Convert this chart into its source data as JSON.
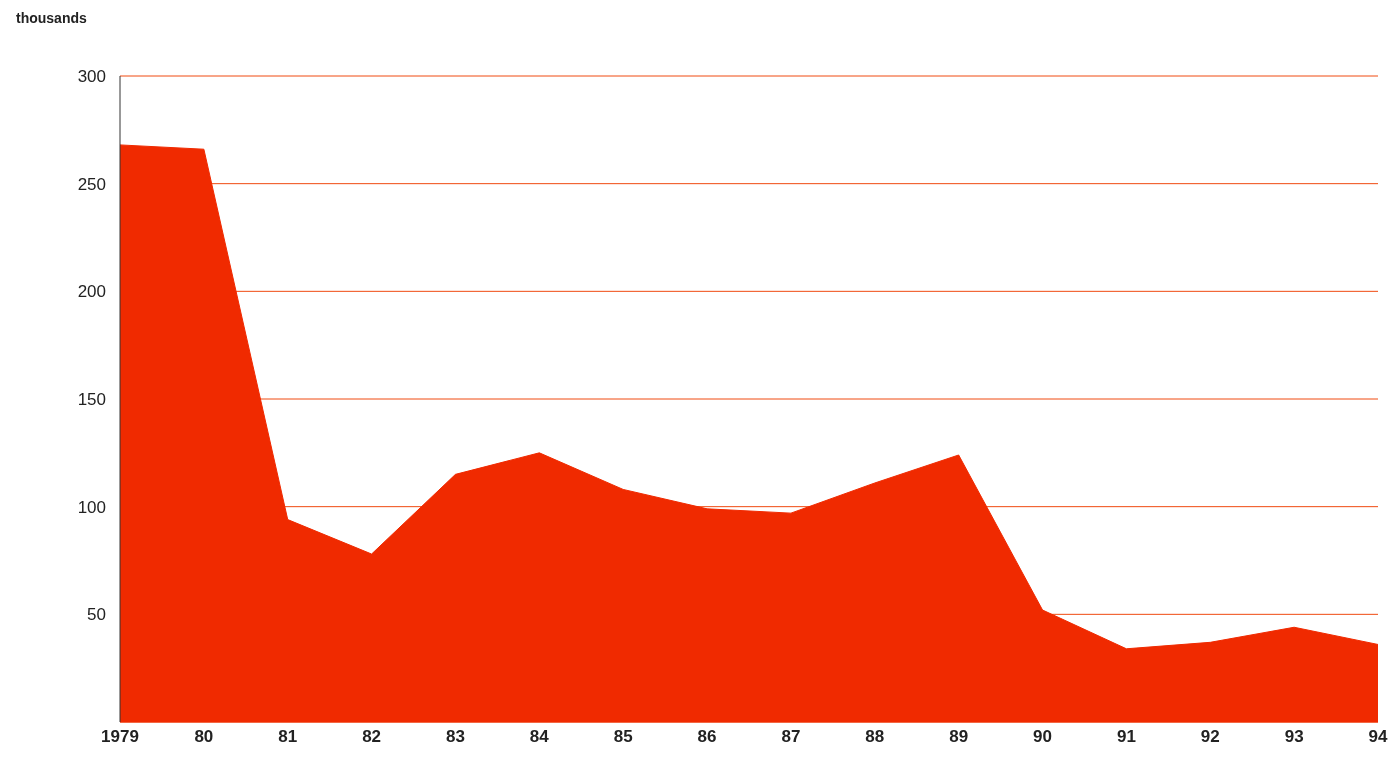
{
  "chart_data": {
    "type": "area",
    "ylabel": "thousands",
    "categories": [
      "1979",
      "80",
      "81",
      "82",
      "83",
      "84",
      "85",
      "86",
      "87",
      "88",
      "89",
      "90",
      "91",
      "92",
      "93",
      "94"
    ],
    "values": [
      268,
      266,
      94,
      78,
      115,
      125,
      108,
      99,
      97,
      111,
      124,
      52,
      34,
      37,
      44,
      36
    ],
    "color": "#f02a00",
    "ylim": [
      0,
      300
    ],
    "yticks": [
      50,
      100,
      150,
      200,
      250,
      300
    ],
    "grid": "y"
  }
}
